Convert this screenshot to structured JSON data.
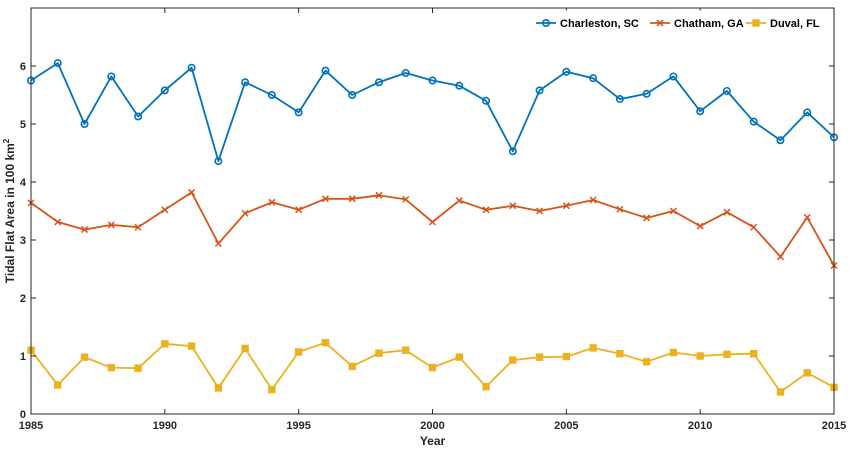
{
  "chart_data": {
    "type": "line",
    "xlabel": "Year",
    "ylabel": "Tidal Flat Area in 100 km",
    "ylabel_sup": "2",
    "xlim": [
      1985,
      2015
    ],
    "ylim": [
      0,
      7
    ],
    "xticks": [
      1985,
      1990,
      1995,
      2000,
      2005,
      2010,
      2015
    ],
    "yticks": [
      0,
      1,
      2,
      3,
      4,
      5,
      6
    ],
    "grid": false,
    "legend_position": "top-right",
    "x": [
      1985,
      1986,
      1987,
      1988,
      1989,
      1990,
      1991,
      1992,
      1993,
      1994,
      1995,
      1996,
      1997,
      1998,
      1999,
      2000,
      2001,
      2002,
      2003,
      2004,
      2005,
      2006,
      2007,
      2008,
      2009,
      2010,
      2011,
      2012,
      2013,
      2014,
      2015
    ],
    "series": [
      {
        "name": "Charleston, SC",
        "color": "#0072BD",
        "marker": "circle",
        "values": [
          5.75,
          6.05,
          5.0,
          5.82,
          5.13,
          5.58,
          5.97,
          4.36,
          5.72,
          5.5,
          5.2,
          5.92,
          5.5,
          5.72,
          5.88,
          5.75,
          5.66,
          5.4,
          4.53,
          5.58,
          5.9,
          5.79,
          5.43,
          5.52,
          5.82,
          5.22,
          5.57,
          5.04,
          4.72,
          5.2,
          4.77
        ]
      },
      {
        "name": "Chatham, GA",
        "color": "#D95319",
        "marker": "x",
        "values": [
          3.64,
          3.31,
          3.18,
          3.26,
          3.22,
          3.52,
          3.82,
          2.94,
          3.46,
          3.65,
          3.52,
          3.71,
          3.71,
          3.77,
          3.7,
          3.31,
          3.68,
          3.52,
          3.59,
          3.5,
          3.59,
          3.69,
          3.53,
          3.38,
          3.5,
          3.24,
          3.48,
          3.22,
          2.71,
          3.39,
          2.56
        ]
      },
      {
        "name": "Duval, FL",
        "color": "#EDB120",
        "marker": "square",
        "values": [
          1.1,
          0.5,
          0.98,
          0.8,
          0.79,
          1.21,
          1.17,
          0.45,
          1.13,
          0.42,
          1.07,
          1.23,
          0.82,
          1.05,
          1.1,
          0.8,
          0.98,
          0.47,
          0.93,
          0.98,
          0.99,
          1.14,
          1.04,
          0.9,
          1.06,
          1.0,
          1.03,
          1.04,
          0.38,
          0.71,
          0.46
        ]
      }
    ]
  }
}
